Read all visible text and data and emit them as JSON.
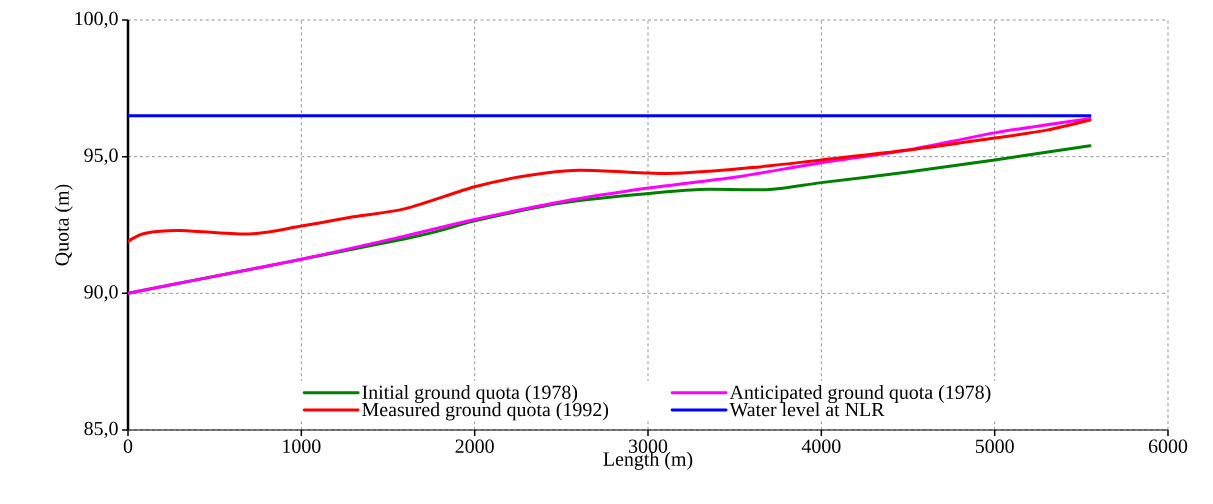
{
  "chart_data": {
    "type": "line",
    "xlabel": "Length (m)",
    "ylabel": "Quota (m)",
    "xlim": [
      0,
      6000
    ],
    "ylim": [
      85,
      100
    ],
    "xticks": [
      0,
      1000,
      2000,
      3000,
      4000,
      5000,
      6000
    ],
    "yticks": [
      {
        "value": 85,
        "label": "85,0"
      },
      {
        "value": 90,
        "label": "90,0"
      },
      {
        "value": 95,
        "label": "95,0"
      },
      {
        "value": 100,
        "label": "100,0"
      }
    ],
    "grid": true,
    "legend": "bottom",
    "series": [
      {
        "name": "Initial ground  quota (1978)",
        "color": "#008000",
        "x": [
          0,
          300,
          1000,
          1600,
          2000,
          2500,
          3000,
          3300,
          3700,
          4000,
          4500,
          5000,
          5550
        ],
        "values": [
          90.0,
          null,
          null,
          92.0,
          92.65,
          93.3,
          93.65,
          93.8,
          93.8,
          94.05,
          94.44,
          94.88,
          95.4
        ]
      },
      {
        "name": "Anticipated ground  quota (1978)",
        "color": "#ff00ff",
        "x": [
          0,
          300,
          1000,
          1600,
          2000,
          2500,
          3000,
          3500,
          4000,
          4500,
          5000,
          5550
        ],
        "values": [
          90.0,
          90.38,
          91.25,
          92.1,
          92.7,
          93.35,
          93.85,
          94.25,
          94.78,
          95.24,
          95.87,
          96.4
        ]
      },
      {
        "name": "Measured ground  quota (1992)",
        "color": "#ff0000",
        "x": [
          0,
          100,
          300,
          700,
          1000,
          1300,
          1600,
          2000,
          2300,
          2600,
          3000,
          3200,
          3600,
          4000,
          4500,
          5000,
          5300,
          5550
        ],
        "values": [
          91.9,
          92.2,
          92.3,
          92.17,
          92.46,
          92.8,
          93.1,
          93.9,
          94.3,
          94.5,
          94.4,
          94.4,
          94.6,
          94.88,
          95.24,
          95.68,
          95.97,
          96.34
        ]
      },
      {
        "name": "Water level at NLR",
        "color": "#0000ff",
        "x": [
          0,
          5550
        ],
        "values": [
          96.5,
          96.5
        ]
      }
    ]
  }
}
